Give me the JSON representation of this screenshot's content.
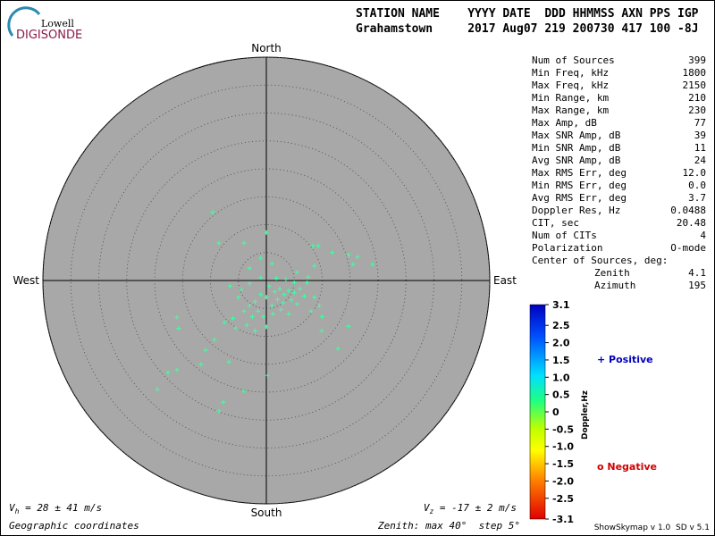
{
  "logo": {
    "top": "Lowell",
    "bottom": "DIGISONDE"
  },
  "header": {
    "line1": "STATION NAME    YYYY DATE  DDD HHMMSS AXN PPS IGP",
    "line2": "Grahamstown     2017 Aug07 219 200730 417 100 -8J"
  },
  "stats": [
    [
      "Num of Sources",
      "399"
    ],
    [
      "Min Freq, kHz",
      "1800"
    ],
    [
      "Max Freq, kHz",
      "2150"
    ],
    [
      "Min Range, km",
      "210"
    ],
    [
      "Max Range, km",
      "230"
    ],
    [
      "Max Amp, dB",
      "77"
    ],
    [
      "Max SNR Amp, dB",
      "39"
    ],
    [
      "Min SNR Amp, dB",
      "11"
    ],
    [
      "Avg SNR Amp, dB",
      "24"
    ],
    [
      "Max RMS Err, deg",
      "12.0"
    ],
    [
      "Min RMS Err, deg",
      "0.0"
    ],
    [
      "Avg RMS Err, deg",
      "3.7"
    ],
    [
      "Doppler Res, Hz",
      "0.0488"
    ],
    [
      "CIT, sec",
      "20.48"
    ],
    [
      "Num of CITs",
      "4"
    ],
    [
      "Polarization",
      "O-mode"
    ]
  ],
  "center": {
    "label": "Center of Sources, deg:",
    "rows": [
      [
        "Zenith",
        "4.1"
      ],
      [
        "Azimuth",
        "195"
      ]
    ]
  },
  "plot": {
    "north": "North",
    "south": "South",
    "east": "East",
    "west": "West",
    "zenith_max": 40,
    "rings": [
      5,
      10,
      15,
      20,
      25,
      30,
      35,
      40
    ],
    "point_color": "#40ffa0",
    "points": [
      [
        -9.6,
        12.2
      ],
      [
        0,
        8.6
      ],
      [
        -8.5,
        6.7
      ],
      [
        -4,
        6.7
      ],
      [
        8.3,
        6.2
      ],
      [
        9.3,
        6.2
      ],
      [
        11.8,
        5
      ],
      [
        14.7,
        4.6
      ],
      [
        16.3,
        4.2
      ],
      [
        19,
        2.9
      ],
      [
        15.5,
        2.9
      ],
      [
        8.6,
        2.6
      ],
      [
        7.5,
        0.6
      ],
      [
        -16,
        -6.6
      ],
      [
        -15.7,
        -8.6
      ],
      [
        -9.3,
        -10.6
      ],
      [
        -10.9,
        -12.5
      ],
      [
        -11.7,
        -15
      ],
      [
        -17.6,
        -16.5
      ],
      [
        -16,
        -16
      ],
      [
        -19.5,
        -19.5
      ],
      [
        -8.5,
        -23.4
      ],
      [
        -7.7,
        -21.8
      ],
      [
        -4,
        -19.8
      ],
      [
        0.2,
        -17
      ],
      [
        -6.7,
        -14.6
      ],
      [
        12.8,
        -12.2
      ],
      [
        9.9,
        -9
      ],
      [
        14.7,
        -8.2
      ],
      [
        0.5,
        -1
      ],
      [
        1.5,
        -2
      ],
      [
        2.4,
        -1.5
      ],
      [
        3.2,
        -2.5
      ],
      [
        4,
        -1.8
      ],
      [
        5,
        -2.2
      ],
      [
        6,
        -1.5
      ],
      [
        6.8,
        -2.8
      ],
      [
        2,
        -3.4
      ],
      [
        3,
        -4
      ],
      [
        4.5,
        -3.5
      ],
      [
        5.5,
        -4.2
      ],
      [
        1,
        -4.5
      ],
      [
        0,
        -3
      ],
      [
        -1,
        -2.5
      ],
      [
        -2,
        -3.8
      ],
      [
        -3,
        -4.5
      ],
      [
        -1.5,
        -5.5
      ],
      [
        -0.5,
        -6.5
      ],
      [
        1.2,
        -6
      ],
      [
        2.6,
        -5.2
      ],
      [
        4,
        -6
      ],
      [
        -2.5,
        -6.5
      ],
      [
        -4,
        -5.5
      ],
      [
        -5,
        -3
      ],
      [
        -4.5,
        -1.6
      ],
      [
        -3,
        -0.5
      ],
      [
        -1,
        0.5
      ],
      [
        1.8,
        0.4
      ],
      [
        3.5,
        0.2
      ],
      [
        5,
        -0.4
      ],
      [
        7.3,
        -0.4
      ],
      [
        8.6,
        -3
      ],
      [
        9.5,
        -4.5
      ],
      [
        8,
        -5.5
      ],
      [
        10,
        -6.5
      ],
      [
        -6,
        -6.8
      ],
      [
        -5.5,
        -8.5
      ],
      [
        -3.5,
        -8
      ],
      [
        -2,
        -9
      ],
      [
        0,
        -8.3
      ],
      [
        -7.5,
        -7.5
      ],
      [
        -3,
        2.2
      ],
      [
        -1,
        4
      ],
      [
        1,
        3
      ],
      [
        5.5,
        1.5
      ],
      [
        -6.5,
        -1
      ]
    ]
  },
  "vh": {
    "symbol": "V",
    "sub": "h",
    "text": " = 28 ± 41 m/s"
  },
  "vz": {
    "symbol": "V",
    "sub": "z",
    "text": " = -17 ± 2 m/s"
  },
  "footer": {
    "coords": "Geographic coordinates",
    "zenith": "Zenith: max 40°  step 5°",
    "version": "ShowSkymap v 1.0  SD v 5.1"
  },
  "colorbar": {
    "label": "Doppler,Hz",
    "lim": [
      -3.1,
      3.1
    ],
    "ticks": [
      3.1,
      2.5,
      {
        "value": 2,
        "label": "2.0"
      },
      1.5,
      {
        "value": 1,
        "label": "1.0"
      },
      0.5,
      0,
      -0.5,
      {
        "value": -1,
        "label": "-1.0"
      },
      -1.5,
      {
        "value": -2,
        "label": "-2.0"
      },
      -2.5,
      -3.1
    ]
  },
  "legend": {
    "positive": "+ Positive",
    "negative": "o Negative"
  }
}
